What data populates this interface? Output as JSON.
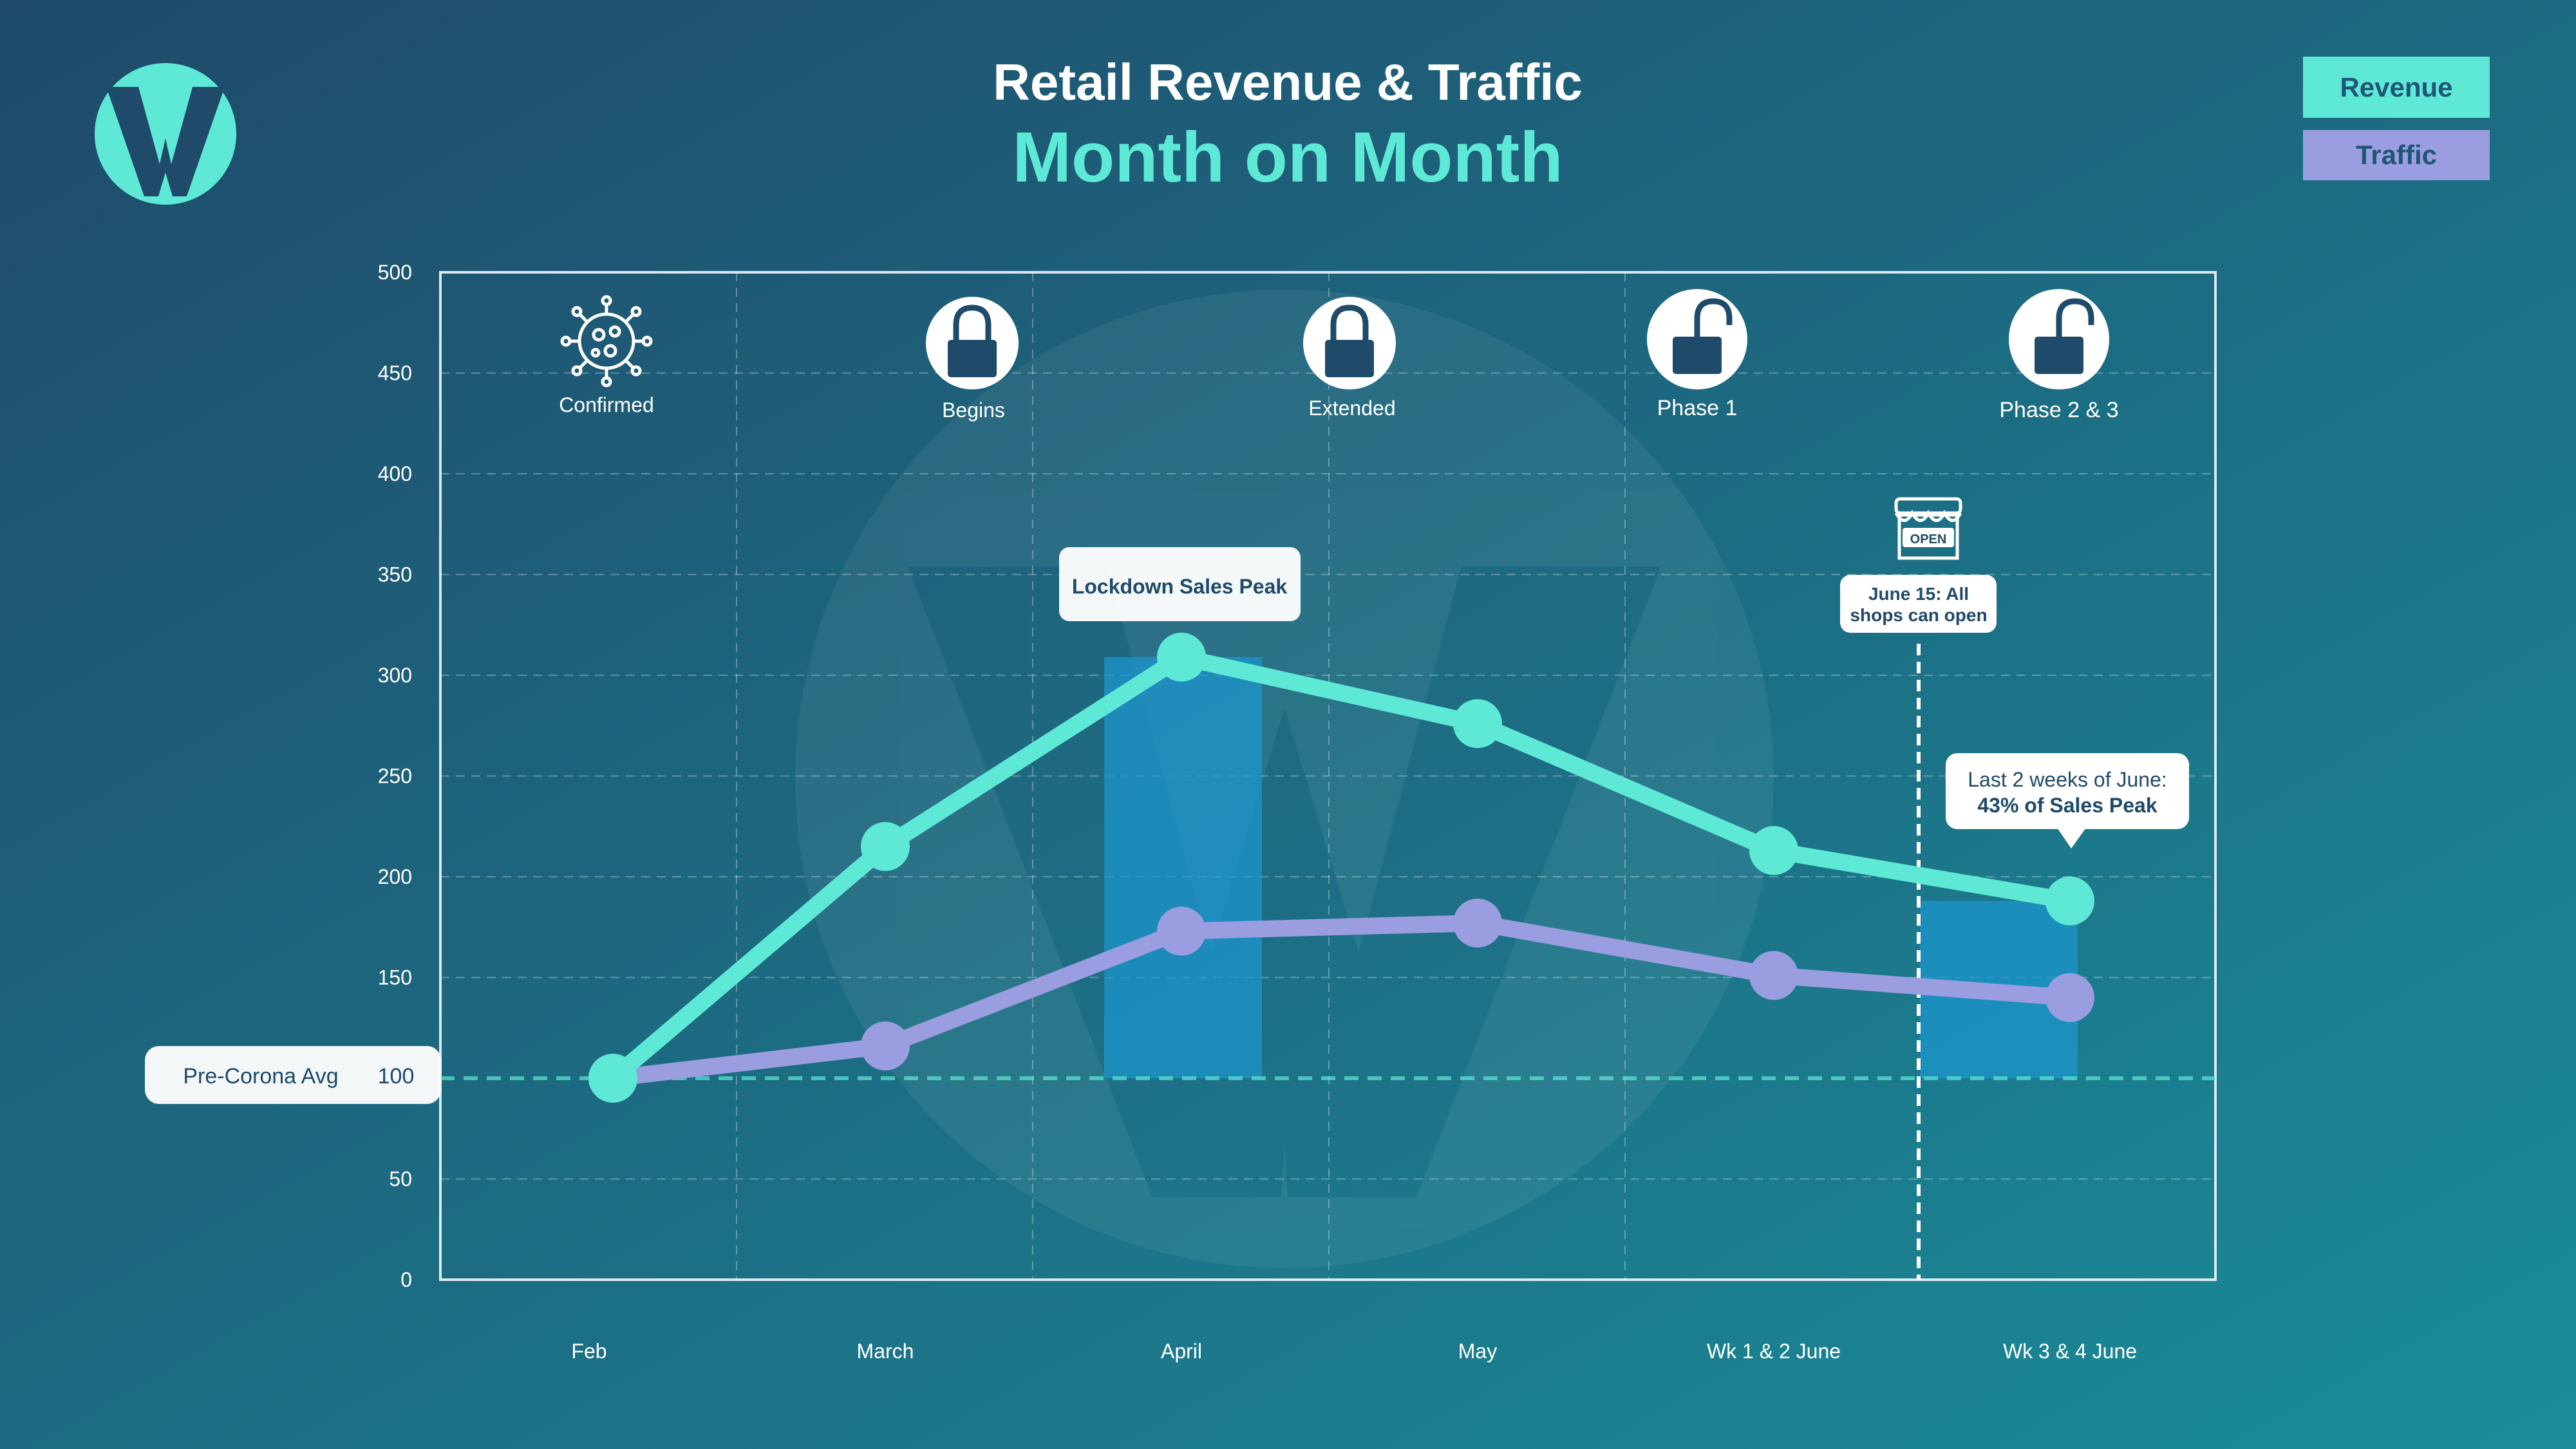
{
  "header": {
    "title": "Retail Revenue & Traffic",
    "subtitle": "Month on Month"
  },
  "legend": {
    "revenue_label": "Revenue",
    "traffic_label": "Traffic"
  },
  "colors": {
    "background_start": "#1f4a6a",
    "background_end": "#1a8c99",
    "revenue": "#5ee8d6",
    "traffic": "#9a9ee0",
    "highlight": "#1e95cc",
    "title": "#ffffff",
    "subtitle": "#5ee8d6",
    "callout_text": "#1f4a6a"
  },
  "phases": [
    {
      "label": "Confirmed",
      "icon": "virus-icon"
    },
    {
      "label": "Begins",
      "icon": "lock-closed-icon"
    },
    {
      "label": "Extended",
      "icon": "lock-closed-icon"
    },
    {
      "label": "Phase 1",
      "icon": "lock-open-icon"
    },
    {
      "label": "Phase 2 & 3",
      "icon": "lock-open-icon"
    }
  ],
  "annotations": {
    "pre_corona": "Pre-Corona Avg",
    "lockdown_peak": "Lockdown Sales Peak",
    "shop_sign": "OPEN",
    "june15_line1": "June 15: All",
    "june15_line2": "shops can open",
    "june_peak_line1": "Last 2 weeks of June:",
    "june_peak_line2": "43% of Sales Peak"
  },
  "chart_data": {
    "type": "line",
    "title": "Retail Revenue & Traffic",
    "subtitle": "Month on Month",
    "categories": [
      "Feb",
      "March",
      "April",
      "May",
      "Wk 1 & 2 June",
      "Wk 3 & 4 June"
    ],
    "series": [
      {
        "name": "Revenue",
        "values": [
          100,
          215,
          309,
          276,
          213,
          188
        ]
      },
      {
        "name": "Traffic",
        "values": [
          100,
          116,
          173,
          177,
          151,
          140
        ]
      }
    ],
    "baseline": {
      "label": "Pre-Corona Avg",
      "value": 100
    },
    "ylim": [
      0,
      500
    ],
    "yticks": [
      0,
      50,
      100,
      150,
      200,
      250,
      300,
      350,
      400,
      450,
      500
    ],
    "grid": true,
    "legend_position": "top-right",
    "xlabel": "",
    "ylabel": ""
  }
}
